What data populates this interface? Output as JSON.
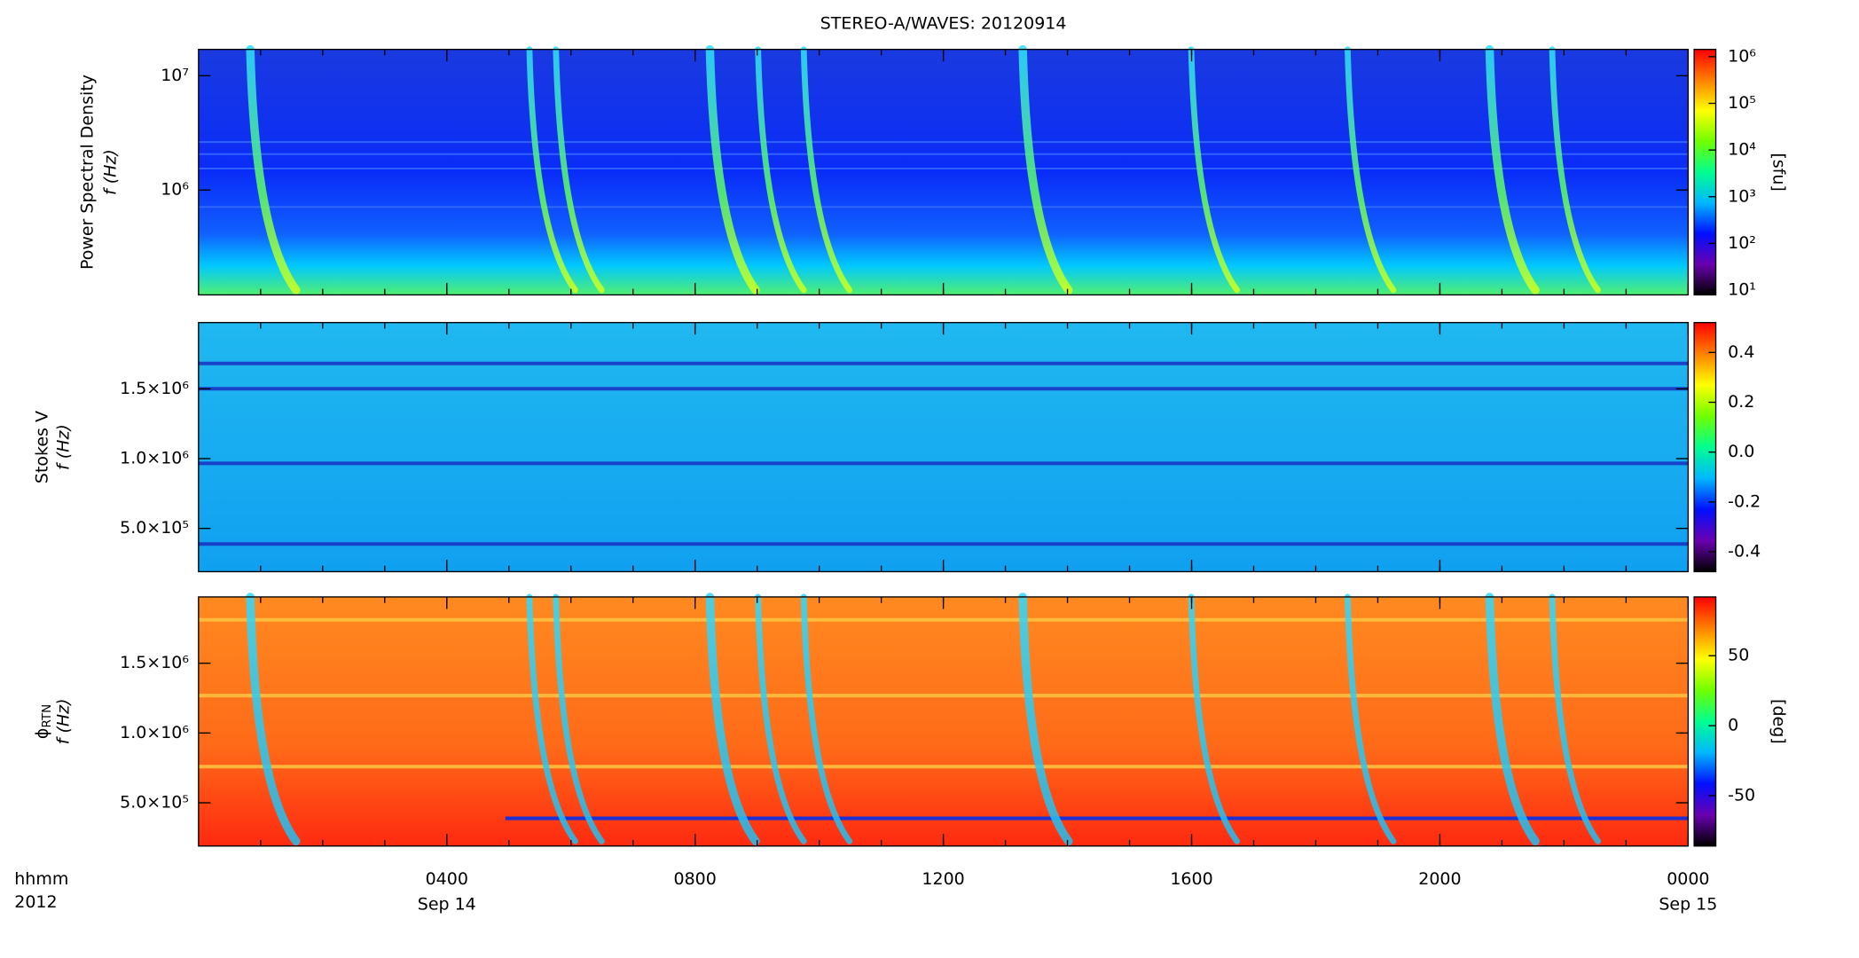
{
  "chart_data": [
    {
      "type": "heatmap",
      "title": "STEREO-A/WAVES: 20120914",
      "ylabel": "Power Spectral Density",
      "ylabel2": "f (Hz)",
      "yscale": "log",
      "ylim": [
        121000,
        17000000
      ],
      "yticks": [
        {
          "value": 1000000,
          "label": "10⁶"
        },
        {
          "value": 10000000,
          "label": "10⁷"
        }
      ],
      "colorbar_label": "[sfu]",
      "cscale": "log",
      "clim": [
        7.9,
        1430000
      ],
      "cticks": [
        {
          "value": 10,
          "label": "10¹"
        },
        {
          "value": 100,
          "label": "10²"
        },
        {
          "value": 1000,
          "label": "10³"
        },
        {
          "value": 10000,
          "label": "10⁴"
        },
        {
          "value": 100000,
          "label": "10⁵"
        },
        {
          "value": 1000000,
          "label": "10⁶"
        }
      ],
      "colormap": [
        "#000000",
        "#6a00b0",
        "#0010ff",
        "#00b8ff",
        "#00ff90",
        "#70ff00",
        "#ffff00",
        "#ff8000",
        "#ff0000"
      ]
    },
    {
      "type": "heatmap",
      "ylabel": "Stokes V",
      "ylabel2": "f (Hz)",
      "yscale": "linear",
      "ylim": [
        190000,
        1975000
      ],
      "yticks": [
        {
          "value": 500000,
          "label": "5.0×10⁵"
        },
        {
          "value": 1000000,
          "label": "1.0×10⁶"
        },
        {
          "value": 1500000,
          "label": "1.5×10⁶"
        }
      ],
      "cscale": "linear",
      "clim": [
        -0.48,
        0.52
      ],
      "cticks": [
        -0.4,
        -0.2,
        {
          "value": 0,
          "label": "0.0"
        },
        0.2,
        0.4
      ],
      "colormap": [
        "#000000",
        "#6a00b0",
        "#0010ff",
        "#00b8ff",
        "#00ff90",
        "#70ff00",
        "#ffff00",
        "#ff8000",
        "#ff0000"
      ]
    },
    {
      "type": "heatmap",
      "ylabel": "ϕ",
      "ylabel_sub": "RTN",
      "ylabel2": "f (Hz)",
      "yscale": "linear",
      "ylim": [
        190000,
        1975000
      ],
      "yticks": [
        {
          "value": 500000,
          "label": "5.0×10⁵"
        },
        {
          "value": 1000000,
          "label": "1.0×10⁶"
        },
        {
          "value": 1500000,
          "label": "1.5×10⁶"
        }
      ],
      "colorbar_label": "[deg]",
      "cscale": "linear",
      "clim": [
        -86,
        92
      ],
      "cticks": [
        -50,
        0,
        50
      ],
      "colormap": [
        "#000000",
        "#6a00b0",
        "#0010ff",
        "#00b8ff",
        "#00ff90",
        "#70ff00",
        "#ffff00",
        "#ff8000",
        "#ff0000"
      ],
      "xlabel": "hhmm",
      "xlabel2": "2012",
      "xlim": [
        0,
        24
      ],
      "xticks": [
        {
          "value": 4,
          "label": "0400"
        },
        {
          "value": 8,
          "label": "0800"
        },
        {
          "value": 12,
          "label": "1200"
        },
        {
          "value": 16,
          "label": "1600"
        },
        {
          "value": 20,
          "label": "2000"
        },
        {
          "value": 24,
          "label": "0000"
        }
      ],
      "date_labels": [
        {
          "value": 4,
          "label": "Sep 14"
        },
        {
          "value": 24,
          "label": "Sep 15"
        }
      ]
    }
  ]
}
